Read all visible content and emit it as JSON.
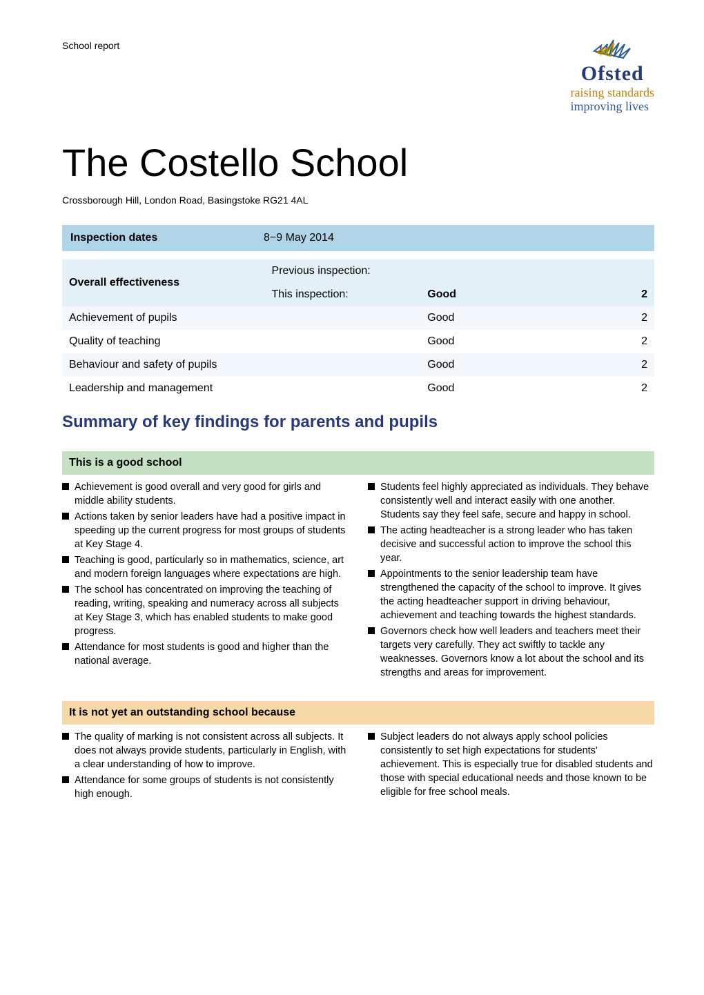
{
  "header": {
    "label": "School report",
    "logo_word": "Ofsted",
    "tagline_line1": "raising standards",
    "tagline_line2": "improving lives",
    "logo_colors": {
      "word": "#263978",
      "raising": "#b28a00",
      "improving": "#2a5a9a"
    }
  },
  "title": "The Costello School",
  "address": "Crossborough Hill, London Road, Basingstoke RG21 4AL",
  "inspection_dates": {
    "label": "Inspection dates",
    "value": "8−9 May 2014"
  },
  "overview": {
    "row_bg_light": "#e4f0f7",
    "row_bg_alt": "#f2f8fb",
    "effectiveness_label": "Overall effectiveness",
    "prev_label": "Previous inspection:",
    "prev_rating": "",
    "prev_num": "",
    "this_label": "This inspection:",
    "this_rating": "Good",
    "this_num": "2",
    "rows": [
      {
        "label": "Achievement of pupils",
        "rating": "Good",
        "num": "2",
        "alt": true
      },
      {
        "label": "Quality of teaching",
        "rating": "Good",
        "num": "2",
        "alt": false
      },
      {
        "label": "Behaviour and safety of pupils",
        "rating": "Good",
        "num": "2",
        "alt": true
      },
      {
        "label": "Leadership and management",
        "rating": "Good",
        "num": "2",
        "alt": false
      }
    ]
  },
  "summary_heading": "Summary of key findings for parents and pupils",
  "good_band": "This is a good school",
  "good_left": [
    "Achievement is good overall and very good for girls and middle ability students.",
    "Actions taken by senior leaders have had a positive impact in speeding up the current progress for most groups of students at Key Stage 4.",
    "Teaching is good, particularly so in mathematics, science, art and modern foreign languages where expectations are high.",
    "The school has concentrated on improving the teaching of reading, writing, speaking and numeracy across all subjects at Key Stage 3, which has enabled students to make good progress.",
    "Attendance for most students is good and higher than the national average."
  ],
  "good_right": [
    "Students feel highly appreciated as individuals. They behave consistently well and interact easily with one another. Students say they feel safe, secure and happy in school.",
    "The acting headteacher is a strong leader who has taken decisive and successful action to improve the school this year.",
    "Appointments to the senior leadership team have strengthened the capacity of the school to improve. It gives the acting headteacher support in driving behaviour, achievement and teaching towards the highest standards.",
    "Governors check how well leaders and teachers meet their targets very carefully. They act swiftly to tackle any weaknesses. Governors know a lot about the school and its strengths and areas for improvement."
  ],
  "not_band": "It is not yet an outstanding school because",
  "not_left": [
    "The quality of marking is not consistent across all subjects. It does not always provide students, particularly in English, with a clear understanding of how to improve.",
    "Attendance for some groups of students is not consistently high enough."
  ],
  "not_right": [
    "Subject leaders do not always apply school policies consistently to set high expectations for students' achievement. This is especially true for disabled students and those with special educational needs and those known to be eligible for free school meals."
  ],
  "styling": {
    "page_bg": "#ffffff",
    "band_green": "#c6e0c4",
    "band_orange": "#f6d9a8",
    "dates_bar_bg": "#b0d4e8",
    "heading_color": "#263978",
    "body_font": "Tahoma, Verdana, Geneva, sans-serif",
    "title_fontsize": 56,
    "body_fontsize": 14.5
  }
}
